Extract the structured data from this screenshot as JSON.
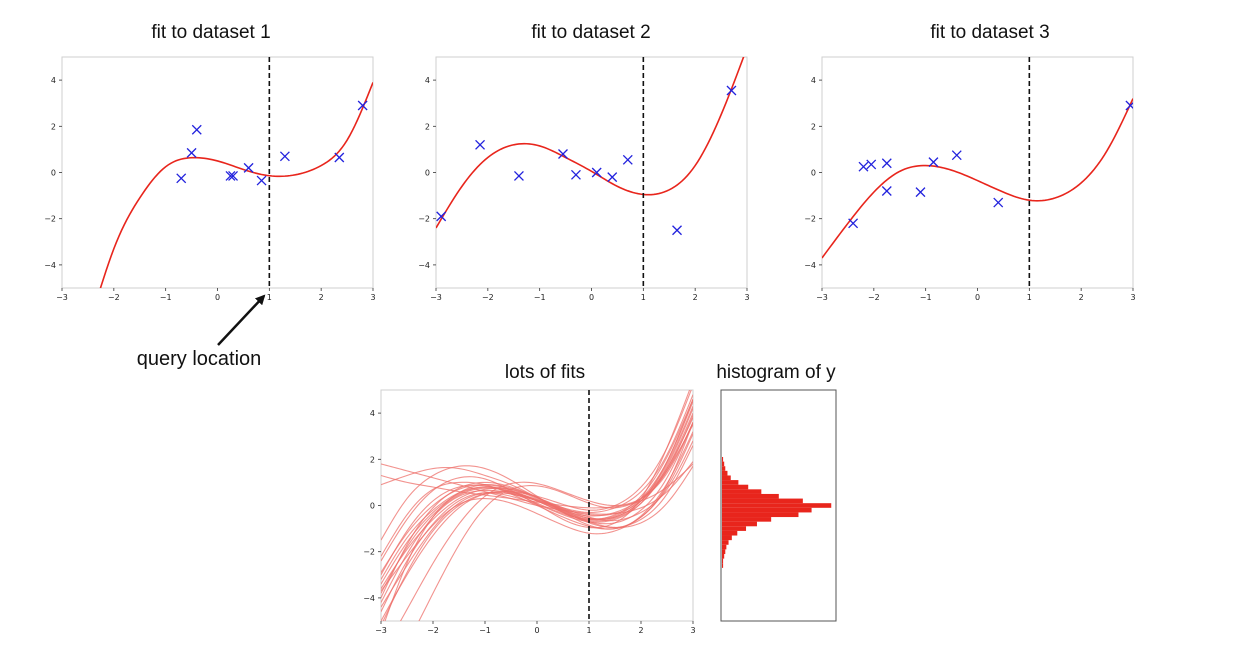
{
  "colors": {
    "fit": "#e8251c",
    "fit_light": "#ee6f6a",
    "point": "#2222dd",
    "hist": "#e8251c",
    "axis": "#cfcfcf",
    "query": "#111111"
  },
  "annotation": {
    "label": "query location"
  },
  "chart_data": [
    {
      "type": "line",
      "title": "fit to dataset 1",
      "xlim": [
        -3,
        3
      ],
      "ylim": [
        -5,
        5
      ],
      "xticks": [
        -3,
        -2,
        -1,
        0,
        1,
        2,
        3
      ],
      "yticks": [
        -4,
        -2,
        0,
        2,
        4
      ],
      "query_x": 1,
      "series": [
        {
          "kind": "fit",
          "x": [
            -2.3,
            -2,
            -1.5,
            -1,
            -0.5,
            0,
            0.5,
            1,
            1.5,
            2,
            2.5,
            3
          ],
          "y": [
            -5.3,
            -3.3,
            -1.1,
            0.25,
            0.64,
            0.5,
            0.13,
            -0.14,
            -0.1,
            0.3,
            1.4,
            3.9
          ]
        },
        {
          "kind": "points",
          "x": [
            -0.7,
            -0.5,
            -0.4,
            0.25,
            0.3,
            0.6,
            0.85,
            1.3,
            2.35,
            2.8
          ],
          "y": [
            -0.25,
            0.85,
            1.85,
            -0.15,
            -0.15,
            0.2,
            -0.35,
            0.7,
            0.65,
            2.9
          ]
        }
      ]
    },
    {
      "type": "line",
      "title": "fit to dataset 2",
      "xlim": [
        -3,
        3
      ],
      "ylim": [
        -5,
        5
      ],
      "xticks": [
        -3,
        -2,
        -1,
        0,
        1,
        2,
        3
      ],
      "yticks": [
        -4,
        -2,
        0,
        2,
        4
      ],
      "query_x": 1,
      "series": [
        {
          "kind": "fit",
          "x": [
            -3,
            -2.5,
            -2,
            -1.5,
            -1,
            -0.5,
            0,
            0.5,
            1,
            1.5,
            2,
            2.5,
            3
          ],
          "y": [
            -2.4,
            -0.6,
            0.65,
            1.2,
            1.15,
            0.65,
            0.05,
            -0.6,
            -0.95,
            -0.75,
            0.3,
            2.5,
            5.4
          ]
        },
        {
          "kind": "points",
          "x": [
            -2.9,
            -2.15,
            -1.4,
            -0.55,
            -0.3,
            0.1,
            0.4,
            0.7,
            1.65,
            2.7
          ],
          "y": [
            -1.9,
            1.2,
            -0.15,
            0.8,
            -0.1,
            0.0,
            -0.2,
            0.55,
            -2.5,
            3.55
          ]
        }
      ]
    },
    {
      "type": "line",
      "title": "fit to dataset 3",
      "xlim": [
        -3,
        3
      ],
      "ylim": [
        -5,
        5
      ],
      "xticks": [
        -3,
        -2,
        -1,
        0,
        1,
        2,
        3
      ],
      "yticks": [
        -4,
        -2,
        0,
        2,
        4
      ],
      "query_x": 1,
      "series": [
        {
          "kind": "fit",
          "x": [
            -3,
            -2.5,
            -2,
            -1.5,
            -1,
            -0.5,
            0,
            0.5,
            1,
            1.5,
            2,
            2.5,
            3
          ],
          "y": [
            -3.7,
            -2.2,
            -0.85,
            0.05,
            0.3,
            0.1,
            -0.35,
            -0.85,
            -1.2,
            -1.1,
            -0.45,
            0.95,
            3.2
          ]
        },
        {
          "kind": "points",
          "x": [
            -2.4,
            -2.2,
            -2.05,
            -1.75,
            -1.75,
            -1.1,
            -0.85,
            -0.4,
            0.4,
            2.95
          ],
          "y": [
            -2.2,
            0.25,
            0.35,
            0.4,
            -0.8,
            -0.85,
            0.45,
            0.75,
            -1.3,
            2.9
          ]
        }
      ]
    },
    {
      "type": "line",
      "title": "lots of fits",
      "xlim": [
        -3,
        3
      ],
      "ylim": [
        -5,
        5
      ],
      "xticks": [
        -3,
        -2,
        -1,
        0,
        1,
        2,
        3
      ],
      "yticks": [
        -4,
        -2,
        0,
        2,
        4
      ],
      "query_x": 1,
      "x": [
        -3,
        -2.5,
        -2,
        -1.5,
        -1,
        -0.5,
        0,
        0.5,
        1,
        1.5,
        2,
        2.5,
        3
      ],
      "series": [
        {
          "values": [
            -5.5,
            -2.5,
            -0.5,
            0.55,
            0.9,
            0.75,
            0.35,
            -0.2,
            -0.55,
            -0.45,
            0.3,
            1.9,
            4.5
          ]
        },
        {
          "values": [
            -3.2,
            -1.4,
            -0.2,
            0.55,
            0.8,
            0.6,
            0.2,
            -0.3,
            -0.7,
            -0.75,
            -0.2,
            1.2,
            3.6
          ]
        },
        {
          "values": [
            -2.4,
            -0.6,
            0.65,
            1.2,
            1.15,
            0.65,
            0.05,
            -0.6,
            -0.95,
            -0.75,
            0.3,
            2.5,
            5.4
          ]
        },
        {
          "values": [
            -3.7,
            -2.2,
            -0.85,
            0.05,
            0.3,
            0.1,
            -0.35,
            -0.85,
            -1.2,
            -1.1,
            -0.45,
            0.95,
            3.2
          ]
        },
        {
          "values": [
            -4.2,
            -2.1,
            -0.5,
            0.4,
            0.65,
            0.55,
            0.25,
            -0.1,
            -0.3,
            -0.1,
            0.6,
            2.2,
            4.8
          ]
        },
        {
          "values": [
            -3.8,
            -1.8,
            -0.4,
            0.45,
            0.75,
            0.6,
            0.25,
            -0.2,
            -0.45,
            -0.3,
            0.3,
            1.6,
            3.8
          ]
        },
        {
          "values": [
            -2.9,
            -1.2,
            0.0,
            0.7,
            0.9,
            0.7,
            0.3,
            -0.25,
            -0.75,
            -0.95,
            -0.6,
            0.5,
            2.6
          ]
        },
        {
          "values": [
            -5.0,
            -3.0,
            -1.3,
            -0.1,
            0.5,
            0.6,
            0.4,
            0.05,
            -0.2,
            0.0,
            0.8,
            2.5,
            5.2
          ]
        },
        {
          "values": [
            -4.6,
            -2.4,
            -0.8,
            0.2,
            0.55,
            0.4,
            0.05,
            -0.4,
            -0.7,
            -0.6,
            0.1,
            1.7,
            4.2
          ]
        },
        {
          "values": [
            -2.2,
            -0.4,
            0.7,
            1.0,
            0.9,
            0.5,
            0.0,
            -0.5,
            -0.9,
            -1.0,
            -0.5,
            0.8,
            3.1
          ]
        },
        {
          "values": [
            -3.4,
            -1.6,
            -0.3,
            0.5,
            0.8,
            0.65,
            0.2,
            -0.3,
            -0.65,
            -0.55,
            0.1,
            1.6,
            4.0
          ]
        },
        {
          "values": [
            -4.4,
            -2.6,
            -1.0,
            0.1,
            0.55,
            0.5,
            0.2,
            -0.15,
            -0.4,
            -0.35,
            0.2,
            1.5,
            3.5
          ]
        },
        {
          "values": [
            -3.0,
            -1.1,
            0.2,
            0.8,
            0.85,
            0.55,
            0.1,
            -0.35,
            -0.6,
            -0.4,
            0.4,
            2.1,
            4.6
          ]
        },
        {
          "values": [
            -3.6,
            -1.9,
            -0.6,
            0.3,
            0.7,
            0.7,
            0.35,
            -0.1,
            -0.5,
            -0.65,
            -0.3,
            0.7,
            2.8
          ]
        },
        {
          "values": [
            -4.0,
            -1.7,
            -0.1,
            0.75,
            1.0,
            0.8,
            0.35,
            -0.15,
            -0.55,
            -0.5,
            0.2,
            1.8,
            4.3
          ]
        },
        {
          "values": [
            -5.2,
            -2.9,
            -1.1,
            0.0,
            0.5,
            0.5,
            0.2,
            -0.25,
            -0.6,
            -0.5,
            0.2,
            1.9,
            4.6
          ]
        },
        {
          "values": [
            1.8,
            1.5,
            1.2,
            0.9,
            0.6,
            0.3,
            0.0,
            -0.2,
            -0.35,
            -0.35,
            -0.1,
            0.6,
            1.9
          ]
        },
        {
          "values": [
            1.3,
            1.0,
            0.8,
            0.6,
            0.45,
            0.3,
            0.15,
            0.0,
            -0.1,
            -0.05,
            0.2,
            0.8,
            1.8
          ]
        },
        {
          "values": [
            0.9,
            1.3,
            1.6,
            1.6,
            1.3,
            0.9,
            0.35,
            -0.2,
            -0.7,
            -0.95,
            -0.75,
            0.1,
            1.7
          ]
        },
        {
          "values": [
            -1.5,
            0.3,
            1.3,
            1.7,
            1.6,
            1.1,
            0.4,
            -0.3,
            -0.85,
            -1.0,
            -0.5,
            0.9,
            3.6
          ]
        },
        {
          "values": [
            -6.5,
            -4.5,
            -2.5,
            -0.8,
            0.4,
            0.95,
            0.95,
            0.6,
            0.2,
            0.0,
            0.3,
            1.4,
            3.6
          ]
        },
        {
          "values": [
            -8.0,
            -6.0,
            -3.8,
            -1.7,
            -0.1,
            0.7,
            0.85,
            0.55,
            0.1,
            -0.1,
            0.3,
            1.5,
            3.9
          ]
        }
      ]
    },
    {
      "type": "bar",
      "orientation": "horizontal",
      "title": "histogram of y",
      "ylim": [
        -5,
        5
      ],
      "bins": [
        -2.6,
        -2.4,
        -2.2,
        -2.0,
        -1.8,
        -1.6,
        -1.4,
        -1.2,
        -1.0,
        -0.8,
        -0.6,
        -0.4,
        -0.2,
        0.0,
        0.2,
        0.4,
        0.6,
        0.8,
        1.0,
        1.2,
        1.4,
        1.6,
        1.8,
        2.0
      ],
      "counts": [
        1,
        1,
        2,
        3,
        4,
        6,
        9,
        14,
        22,
        32,
        45,
        70,
        82,
        100,
        74,
        52,
        36,
        24,
        15,
        8,
        5,
        3,
        2,
        1
      ]
    }
  ]
}
